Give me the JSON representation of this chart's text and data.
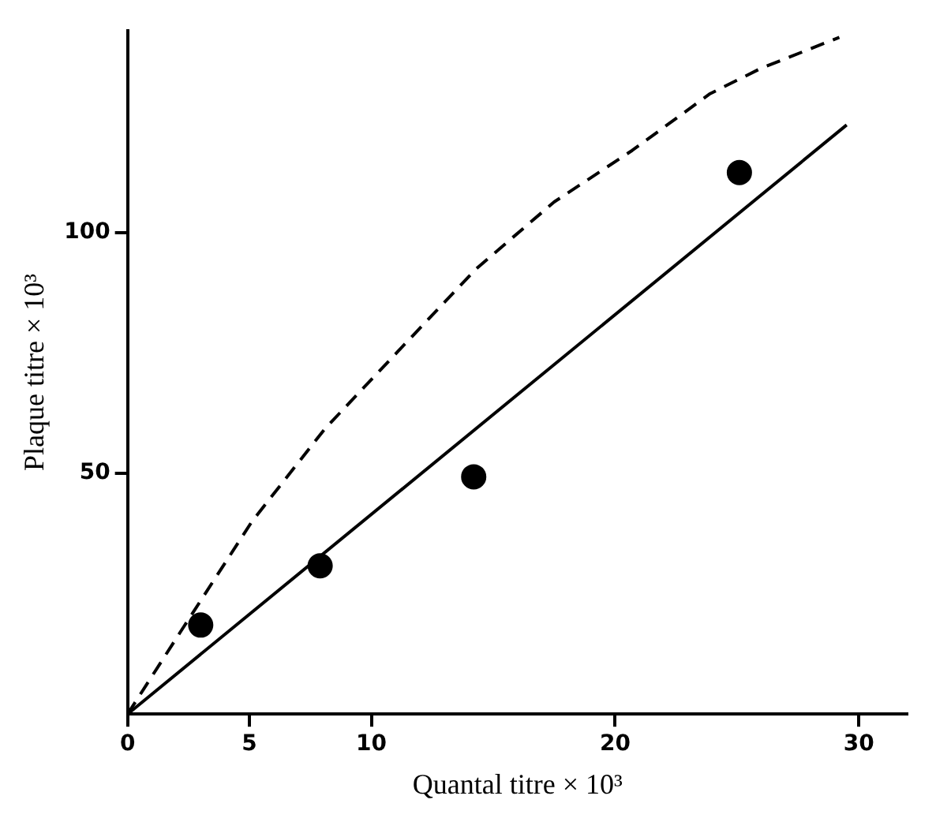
{
  "chart_data": {
    "type": "scatter",
    "xlabel": "Quantal titre × 10³",
    "ylabel": "Plaque titre × 10³",
    "xlim": [
      0,
      32
    ],
    "ylim": [
      0,
      142
    ],
    "xticks": [
      0,
      5,
      10,
      20,
      30
    ],
    "yticks": [
      50,
      100
    ],
    "grid": false,
    "legend": false,
    "series": [
      {
        "type": "scatter",
        "color": "#000000",
        "marker": "circle",
        "x": [
          3.0,
          7.9,
          14.2,
          25.1
        ],
        "values": [
          18.5,
          30.8,
          49.3,
          112.5
        ]
      },
      {
        "type": "line",
        "color": "#000000",
        "marker": "none",
        "line_style": "solid",
        "x": [
          0,
          29.5
        ],
        "values": [
          0,
          122.4
        ]
      },
      {
        "type": "line",
        "color": "#000000",
        "marker": "none",
        "line_style": "dashed",
        "x": [
          0,
          2.3,
          5.1,
          8.1,
          11.1,
          14.3,
          17.5,
          20.7,
          23.9,
          26.0,
          29.2
        ],
        "values": [
          0,
          18.1,
          40,
          59.3,
          75.4,
          92.5,
          106.4,
          117.1,
          128.9,
          134.2,
          140.6
        ]
      }
    ]
  }
}
